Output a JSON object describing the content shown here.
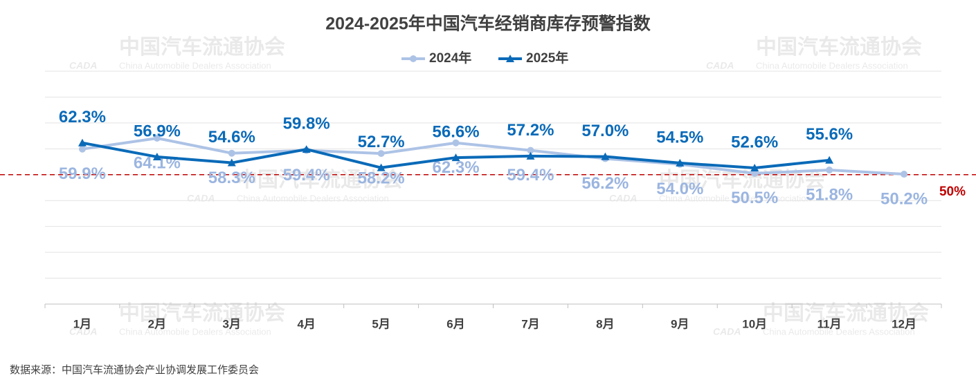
{
  "chart_data": {
    "type": "line",
    "title": "2024-2025年中国汽车经销商库存预警指数",
    "categories": [
      "1月",
      "2月",
      "3月",
      "4月",
      "5月",
      "6月",
      "7月",
      "8月",
      "9月",
      "10月",
      "11月",
      "12月"
    ],
    "series": [
      {
        "name": "2024年",
        "color": "#adc3e6",
        "marker": "circle",
        "values": [
          59.9,
          64.1,
          58.3,
          59.4,
          58.2,
          62.3,
          59.4,
          56.2,
          54.0,
          50.5,
          51.8,
          50.2
        ],
        "value_labels": [
          "59.9%",
          "64.1%",
          "58.3%",
          "59.4%",
          "58.2%",
          "62.3%",
          "59.4%",
          "56.2%",
          "54.0%",
          "50.5%",
          "51.8%",
          "50.2%"
        ]
      },
      {
        "name": "2025年",
        "color": "#0a6ab8",
        "marker": "triangle",
        "values": [
          62.3,
          56.9,
          54.6,
          59.8,
          52.7,
          56.6,
          57.2,
          57.0,
          54.5,
          52.6,
          55.6,
          null
        ],
        "value_labels": [
          "62.3%",
          "56.9%",
          "54.6%",
          "59.8%",
          "52.7%",
          "56.6%",
          "57.2%",
          "57.0%",
          "54.5%",
          "52.6%",
          "55.6%",
          null
        ]
      }
    ],
    "ylim": [
      0,
      90
    ],
    "yticks": [
      0,
      10,
      20,
      30,
      40,
      50,
      60,
      70,
      80,
      90
    ],
    "grid": true,
    "legend": "top",
    "reference_line": {
      "value": 50,
      "label": "50%",
      "color": "#c00000"
    },
    "watermark": {
      "name": "中国汽车流通协会",
      "english": "China Automobile Dealers Association",
      "logo": "CADA"
    },
    "source": "数据来源：中国汽车流通协会产业协调发展工作委员会"
  }
}
